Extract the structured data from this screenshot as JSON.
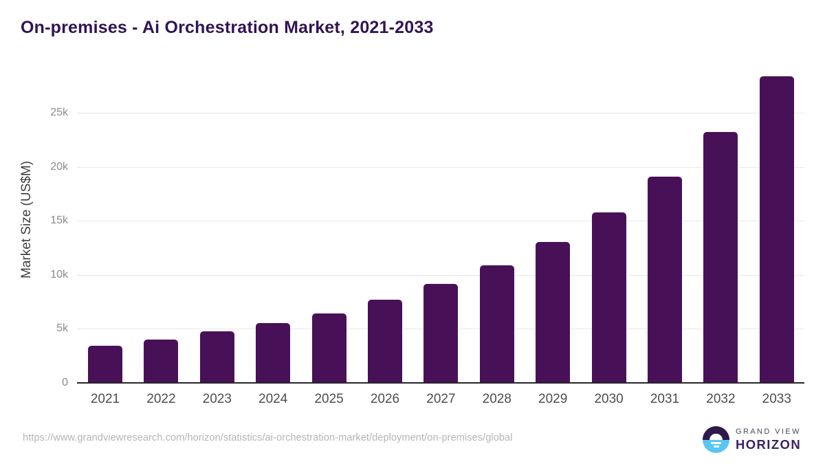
{
  "title": "On-premises - Ai Orchestration Market, 2021-2033",
  "chart_data": {
    "type": "bar",
    "title": "On-premises - Ai Orchestration Market, 2021-2033",
    "categories": [
      "2021",
      "2022",
      "2023",
      "2024",
      "2025",
      "2026",
      "2027",
      "2028",
      "2029",
      "2030",
      "2031",
      "2032",
      "2033"
    ],
    "values": [
      3450,
      4000,
      4750,
      5550,
      6450,
      7700,
      9150,
      10900,
      13050,
      15750,
      19100,
      23200,
      28400
    ],
    "xlabel": "",
    "ylabel": "Market Size (US$M)",
    "ylim": [
      0,
      28500
    ],
    "yticks": [
      {
        "label": "0",
        "value": 0
      },
      {
        "label": "5k",
        "value": 5000
      },
      {
        "label": "10k",
        "value": 10000
      },
      {
        "label": "15k",
        "value": 15000
      },
      {
        "label": "20k",
        "value": 20000
      },
      {
        "label": "25k",
        "value": 25000
      }
    ],
    "grid": true,
    "legend": "none",
    "bar_color": "#481157"
  },
  "colors": {
    "title": "#321453",
    "bar": "#481157",
    "gridline": "#e8e8e8",
    "axis_line": "#28262b",
    "y_tick_text": "#8a8a8a",
    "x_tick_text": "#4d4d4d",
    "footer_text": "#b4b4b4",
    "logo_purple": "#2e1a4b",
    "logo_blue": "#59c6f2"
  },
  "footer": {
    "source_url": "https://www.grandviewresearch.com/horizon/statistics/ai-orchestration-market/deployment/on-premises/global",
    "logo": {
      "line1": "GRAND VIEW",
      "line2": "HORIZON"
    }
  }
}
